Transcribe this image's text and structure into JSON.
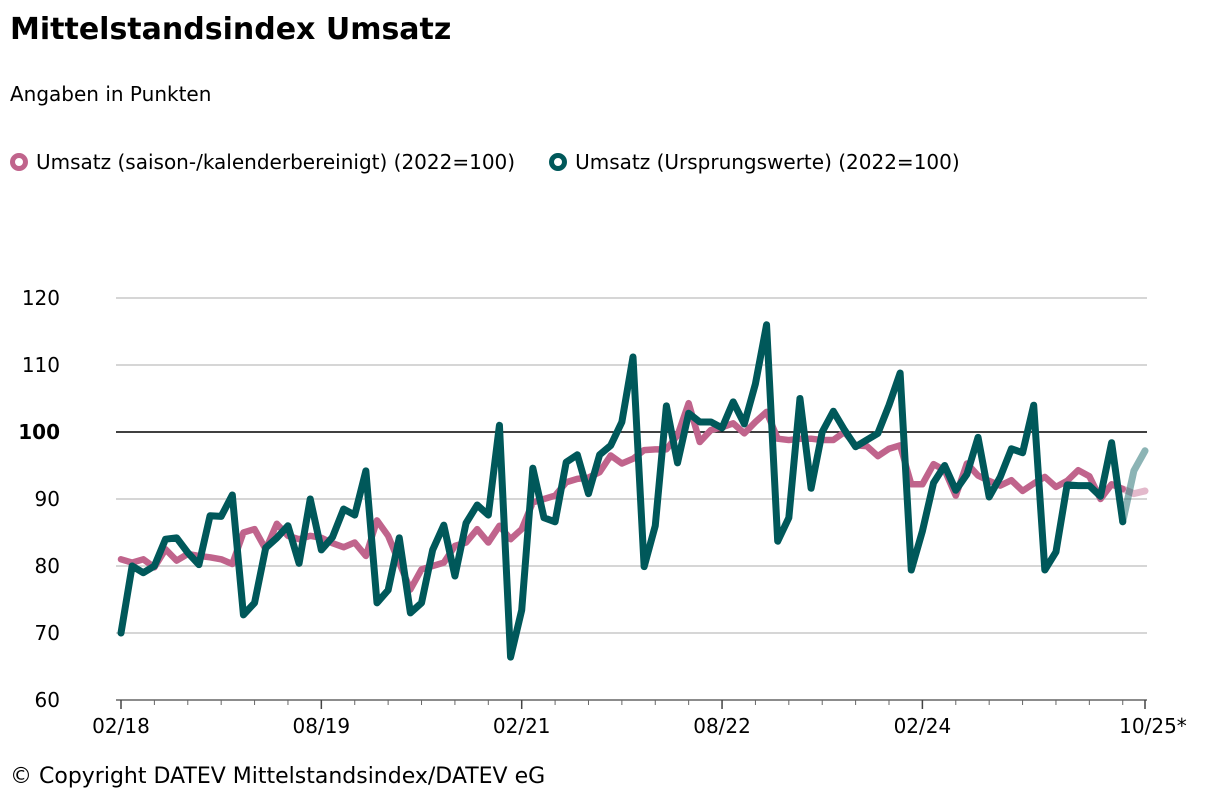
{
  "footer": "© Copyright DATEV Mittelstandsindex/DATEV eG",
  "chart_data": {
    "type": "line",
    "title": "Mittelstandsindex Umsatz",
    "subtitle": "Angaben in Punkten",
    "x_start": "02/18",
    "x_end": "10/25",
    "x_frequency": "monthly",
    "x_tick_labels": [
      "02/18",
      "08/19",
      "02/21",
      "08/22",
      "02/24",
      "10/25*"
    ],
    "y_ticks": [
      60,
      70,
      80,
      90,
      100,
      110,
      120
    ],
    "ylim": [
      60,
      120
    ],
    "reference_line": 100,
    "grid": true,
    "legend_position": "top-left",
    "forecast_points": 2,
    "series": [
      {
        "name": "Umsatz (saison-/kalenderbereinigt) (2022=100)",
        "color": "#c0648c",
        "values": [
          81,
          80.5,
          81,
          79.8,
          82.5,
          80.8,
          81.8,
          81.5,
          81.3,
          81,
          80.3,
          85,
          85.5,
          82.5,
          86.3,
          84.5,
          84,
          84.5,
          84.2,
          83.4,
          82.8,
          83.5,
          81.5,
          86.8,
          84.5,
          80.5,
          76.5,
          79.5,
          80,
          80.5,
          83,
          83.5,
          85.5,
          83.5,
          86,
          84,
          85.5,
          89.5,
          90,
          90.5,
          92.5,
          93,
          93.2,
          94,
          96.5,
          95.3,
          96,
          97.3,
          97.4,
          97.4,
          99.5,
          104.3,
          98.5,
          100.3,
          100.7,
          101.3,
          99.8,
          101.5,
          103,
          99,
          98.8,
          99,
          99,
          98.8,
          98.8,
          100,
          98,
          97.9,
          96.4,
          97.5,
          98,
          92.2,
          92.2,
          95.2,
          94.3,
          90.5,
          95.3,
          93.5,
          92.7,
          92,
          92.8,
          91.2,
          92.3,
          93.3,
          91.8,
          92.7,
          94.3,
          93.4,
          90,
          92.2,
          91.5,
          90.8,
          91.2
        ]
      },
      {
        "name": "Umsatz (Ursprungswerte) (2022=100)",
        "color": "#00585a",
        "values": [
          70,
          80,
          79,
          80,
          84,
          84.2,
          82,
          80.2,
          87.5,
          87.4,
          90.6,
          72.7,
          74.5,
          82.7,
          84.2,
          86,
          80.4,
          90,
          82.4,
          84.3,
          88.5,
          87.6,
          94.2,
          74.5,
          76.4,
          84.2,
          73,
          74.5,
          82.4,
          86.1,
          78.5,
          86.4,
          89.1,
          87.6,
          101,
          66.4,
          73.4,
          94.6,
          87.2,
          86.6,
          95.5,
          96.6,
          90.8,
          96.6,
          98,
          101.5,
          111.2,
          79.9,
          86,
          103.9,
          95.4,
          102.8,
          101.5,
          101.5,
          100.6,
          104.5,
          101.2,
          107.2,
          116,
          83.7,
          87.2,
          105,
          91.6,
          100,
          103.1,
          100.3,
          97.8,
          98.8,
          99.8,
          104,
          108.8,
          79.4,
          85.2,
          92.4,
          95,
          91.3,
          93.7,
          99.2,
          90.3,
          93.3,
          97.5,
          96.9,
          104,
          79.4,
          82.1,
          92.1,
          92,
          92,
          90.4,
          98.4,
          86.6,
          94.2,
          97.2
        ]
      }
    ]
  }
}
